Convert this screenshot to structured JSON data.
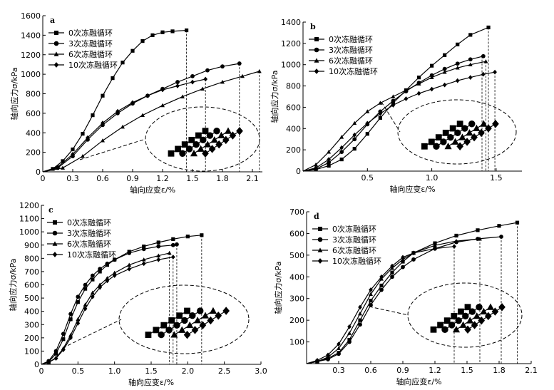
{
  "chart_data": [
    {
      "panel": "a",
      "type": "line",
      "xlabel": "轴向应变ε/%",
      "ylabel": "轴向应力σ/kPa",
      "xlim": [
        0,
        2.2
      ],
      "ylim": [
        0,
        1600
      ],
      "xticks": [
        "0",
        "0.3",
        "0.6",
        "0.9",
        "1.2",
        "1.5",
        "1.8",
        "2.1"
      ],
      "yticks": [
        "0",
        "200",
        "400",
        "600",
        "800",
        "1000",
        "1200",
        "1400",
        "1600"
      ],
      "legend_position": "top-left",
      "series": [
        {
          "name": "0次冻融循环",
          "marker": "square",
          "x": [
            0,
            0.1,
            0.2,
            0.3,
            0.4,
            0.5,
            0.6,
            0.7,
            0.8,
            0.9,
            1.0,
            1.1,
            1.2,
            1.3,
            1.44
          ],
          "y": [
            0,
            30,
            110,
            230,
            390,
            580,
            780,
            960,
            1120,
            1240,
            1340,
            1400,
            1430,
            1440,
            1450
          ]
        },
        {
          "name": "3次冻融循环",
          "marker": "circle",
          "x": [
            0,
            0.15,
            0.3,
            0.45,
            0.6,
            0.75,
            0.9,
            1.05,
            1.2,
            1.35,
            1.5,
            1.65,
            1.8,
            1.97
          ],
          "y": [
            0,
            40,
            160,
            330,
            480,
            600,
            700,
            780,
            850,
            920,
            980,
            1040,
            1080,
            1110
          ]
        },
        {
          "name": "6次冻融循环",
          "marker": "triangle",
          "x": [
            0,
            0.2,
            0.4,
            0.6,
            0.8,
            1.0,
            1.2,
            1.4,
            1.6,
            1.8,
            2.0,
            2.17
          ],
          "y": [
            0,
            40,
            160,
            320,
            460,
            580,
            680,
            770,
            850,
            920,
            980,
            1030
          ]
        },
        {
          "name": "10次冻融循环",
          "marker": "diamond",
          "x": [
            0,
            0.15,
            0.3,
            0.45,
            0.6,
            0.75,
            0.9,
            1.05,
            1.2,
            1.35,
            1.5,
            1.63
          ],
          "y": [
            0,
            50,
            180,
            350,
            500,
            620,
            710,
            780,
            840,
            880,
            920,
            950
          ]
        }
      ],
      "dashed_markers": [
        1.44,
        1.63,
        1.97,
        2.17
      ]
    },
    {
      "panel": "b",
      "type": "line",
      "xlabel": "轴向应变ε/%",
      "ylabel": "轴向应力σ/kPa",
      "xlim": [
        0,
        1.7
      ],
      "ylim": [
        0,
        1400
      ],
      "xticks": [
        "0.5",
        "1.0",
        "1.5"
      ],
      "yticks": [
        "0",
        "200",
        "400",
        "600",
        "800",
        "1000",
        "1200",
        "1400"
      ],
      "legend_position": "top-left",
      "series": [
        {
          "name": "0次冻融循环",
          "marker": "square",
          "x": [
            0,
            0.1,
            0.2,
            0.3,
            0.4,
            0.5,
            0.6,
            0.7,
            0.8,
            0.9,
            1.0,
            1.1,
            1.2,
            1.3,
            1.44
          ],
          "y": [
            0,
            15,
            50,
            110,
            210,
            350,
            500,
            640,
            760,
            880,
            990,
            1090,
            1190,
            1280,
            1350
          ]
        },
        {
          "name": "3次冻融循环",
          "marker": "circle",
          "x": [
            0,
            0.1,
            0.2,
            0.3,
            0.4,
            0.5,
            0.6,
            0.7,
            0.8,
            0.9,
            1.0,
            1.1,
            1.2,
            1.3,
            1.4
          ],
          "y": [
            0,
            20,
            80,
            180,
            300,
            440,
            560,
            660,
            750,
            830,
            900,
            960,
            1010,
            1050,
            1080
          ]
        },
        {
          "name": "6次冻融循环",
          "marker": "triangle",
          "x": [
            0,
            0.1,
            0.2,
            0.3,
            0.4,
            0.5,
            0.6,
            0.7,
            0.8,
            0.9,
            1.0,
            1.1,
            1.2,
            1.3,
            1.42
          ],
          "y": [
            0,
            60,
            180,
            320,
            450,
            560,
            640,
            700,
            760,
            820,
            880,
            930,
            970,
            1000,
            1030
          ]
        },
        {
          "name": "10次冻融循环",
          "marker": "diamond",
          "x": [
            0,
            0.1,
            0.2,
            0.3,
            0.4,
            0.5,
            0.6,
            0.7,
            0.8,
            0.9,
            1.0,
            1.1,
            1.2,
            1.3,
            1.4,
            1.49
          ],
          "y": [
            0,
            30,
            110,
            220,
            340,
            450,
            540,
            620,
            680,
            730,
            770,
            810,
            850,
            880,
            910,
            930
          ]
        }
      ],
      "dashed_markers": [
        1.39,
        1.42,
        1.44,
        1.49
      ]
    },
    {
      "panel": "c",
      "type": "line",
      "xlabel": "轴向应变ε/%",
      "ylabel": "轴向应力σ/kPa",
      "xlim": [
        0,
        3.0
      ],
      "ylim": [
        0,
        1200
      ],
      "xticks": [
        "0",
        "0.5",
        "1.0",
        "1.5",
        "2.0",
        "2.5",
        "3.0"
      ],
      "yticks": [
        "0",
        "100",
        "200",
        "300",
        "400",
        "500",
        "600",
        "700",
        "800",
        "900",
        "1000",
        "1100",
        "1200"
      ],
      "legend_position": "top-left",
      "series": [
        {
          "name": "0次冻融循环",
          "marker": "square",
          "x": [
            0,
            0.1,
            0.2,
            0.3,
            0.4,
            0.5,
            0.6,
            0.7,
            0.8,
            0.9,
            1.0,
            1.2,
            1.4,
            1.6,
            1.8,
            2.0,
            2.19
          ],
          "y": [
            0,
            20,
            80,
            190,
            340,
            470,
            570,
            640,
            700,
            750,
            790,
            850,
            890,
            920,
            945,
            965,
            975
          ]
        },
        {
          "name": "3次冻融循环",
          "marker": "circle",
          "x": [
            0,
            0.1,
            0.2,
            0.3,
            0.4,
            0.5,
            0.6,
            0.7,
            0.8,
            0.9,
            1.0,
            1.2,
            1.4,
            1.6,
            1.8,
            1.85
          ],
          "y": [
            0,
            25,
            100,
            230,
            380,
            510,
            600,
            670,
            720,
            760,
            790,
            840,
            870,
            890,
            900,
            905
          ]
        },
        {
          "name": "6次冻融循环",
          "marker": "triangle",
          "x": [
            0,
            0.1,
            0.2,
            0.3,
            0.4,
            0.5,
            0.6,
            0.7,
            0.8,
            0.9,
            1.0,
            1.2,
            1.4,
            1.6,
            1.75
          ],
          "y": [
            0,
            15,
            50,
            120,
            220,
            340,
            450,
            540,
            600,
            650,
            690,
            750,
            790,
            820,
            840
          ]
        },
        {
          "name": "10次冻融循环",
          "marker": "diamond",
          "x": [
            0,
            0.1,
            0.2,
            0.3,
            0.4,
            0.5,
            0.6,
            0.7,
            0.8,
            0.9,
            1.0,
            1.2,
            1.4,
            1.6,
            1.8
          ],
          "y": [
            0,
            15,
            45,
            110,
            200,
            310,
            420,
            510,
            580,
            630,
            670,
            720,
            760,
            790,
            810
          ]
        }
      ],
      "dashed_markers": [
        1.75,
        1.8,
        1.85,
        2.19
      ]
    },
    {
      "panel": "d",
      "type": "line",
      "xlabel": "轴向应变ε/%",
      "ylabel": "轴向应力σ/kPa",
      "xlim": [
        0,
        2.1
      ],
      "ylim": [
        0,
        700
      ],
      "xticks": [
        "0.3",
        "0.6",
        "0.9",
        "1.2",
        "1.5",
        "1.8",
        "2.1"
      ],
      "yticks": [
        "100",
        "200",
        "300",
        "400",
        "500",
        "600",
        "700"
      ],
      "legend_position": "top-left",
      "series": [
        {
          "name": "0次冻融循环",
          "marker": "square",
          "x": [
            0,
            0.1,
            0.2,
            0.3,
            0.4,
            0.5,
            0.6,
            0.7,
            0.8,
            0.9,
            1.0,
            1.2,
            1.4,
            1.6,
            1.8,
            1.97
          ],
          "y": [
            0,
            10,
            25,
            50,
            110,
            200,
            290,
            360,
            420,
            470,
            510,
            555,
            590,
            615,
            635,
            650
          ]
        },
        {
          "name": "3次冻融循环",
          "marker": "circle",
          "x": [
            0,
            0.1,
            0.2,
            0.3,
            0.4,
            0.5,
            0.6,
            0.7,
            0.8,
            0.9,
            1.0,
            1.2,
            1.4,
            1.6,
            1.82
          ],
          "y": [
            0,
            10,
            20,
            45,
            100,
            180,
            270,
            340,
            400,
            445,
            480,
            530,
            560,
            575,
            585
          ]
        },
        {
          "name": "6次冻融循环",
          "marker": "triangle",
          "x": [
            0,
            0.1,
            0.2,
            0.3,
            0.4,
            0.5,
            0.6,
            0.7,
            0.8,
            0.9,
            1.0,
            1.2,
            1.4,
            1.62
          ],
          "y": [
            0,
            10,
            30,
            70,
            140,
            230,
            320,
            390,
            440,
            480,
            510,
            545,
            565,
            575
          ]
        },
        {
          "name": "10次冻融循环",
          "marker": "diamond",
          "x": [
            0,
            0.1,
            0.2,
            0.3,
            0.4,
            0.5,
            0.6,
            0.7,
            0.8,
            0.9,
            1.0,
            1.2,
            1.38
          ],
          "y": [
            0,
            15,
            40,
            90,
            170,
            260,
            340,
            400,
            450,
            490,
            510,
            530,
            540
          ]
        }
      ],
      "dashed_markers": [
        1.38,
        1.62,
        1.82,
        1.97
      ]
    }
  ]
}
